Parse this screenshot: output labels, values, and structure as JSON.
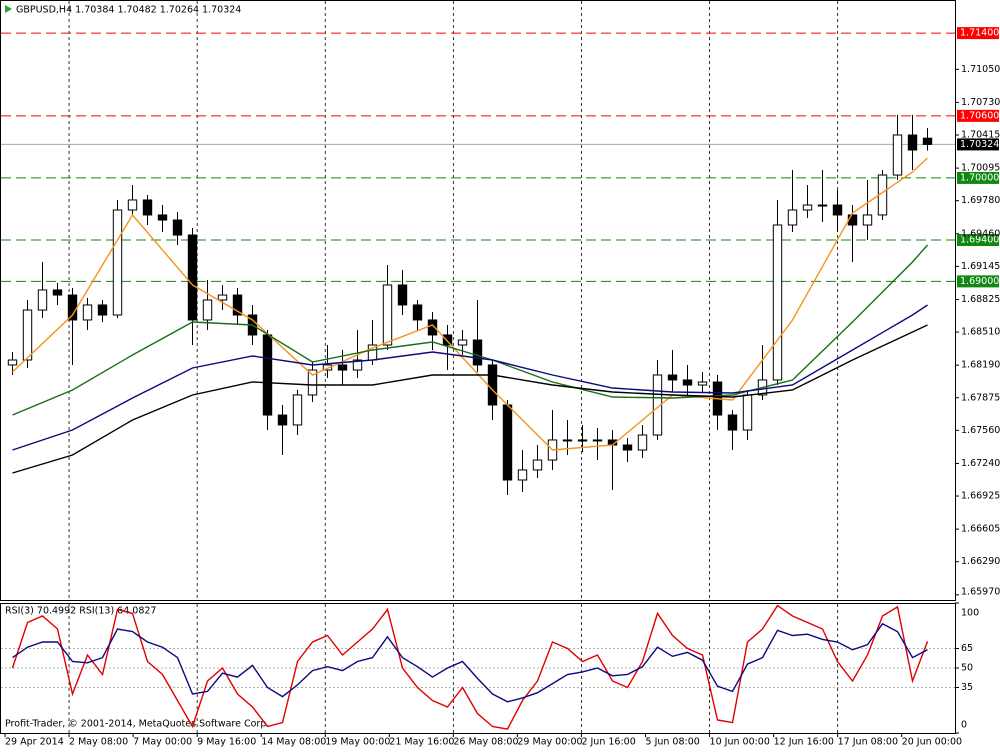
{
  "chart_data": [
    {
      "type": "candlestick",
      "title": "GBPUSD,H4  1.70384 1.70482 1.70264 1.70324",
      "open": [
        1.68192,
        1.6824,
        1.68723,
        1.68917,
        1.68868,
        1.68627,
        1.68772,
        1.68675,
        1.6969,
        1.69787,
        1.69642,
        1.69593,
        1.69448,
        1.68627,
        1.6882,
        1.68868,
        1.68675,
        1.68482,
        1.67708,
        1.67612,
        1.67902,
        1.68143,
        1.68192,
        1.68143,
        1.6824,
        1.68385,
        1.68965,
        1.68772,
        1.68627,
        1.68482,
        1.68385,
        1.68433,
        1.68192,
        1.67805,
        1.6708,
        1.67177,
        1.67273,
        1.67467,
        1.67467,
        1.67467,
        1.67467,
        1.67418,
        1.6737,
        1.67515,
        1.68095,
        1.68047,
        1.67998,
        1.68027,
        1.67708,
        1.67563,
        1.67902,
        1.68047,
        1.69545,
        1.6969,
        1.69738,
        1.69738,
        1.69642,
        1.69545,
        1.69642,
        1.70028,
        1.70415,
        1.70384
      ],
      "high": [
        1.68317,
        1.6882,
        1.69187,
        1.68984,
        1.68936,
        1.68839,
        1.6882,
        1.69787,
        1.69932,
        1.69835,
        1.69738,
        1.69671,
        1.69516,
        1.69013,
        1.68965,
        1.68936,
        1.68772,
        1.6853,
        1.67805,
        1.6795,
        1.68221,
        1.68385,
        1.68337,
        1.6853,
        1.68627,
        1.69158,
        1.6911,
        1.6882,
        1.68704,
        1.68578,
        1.6853,
        1.6882,
        1.6824,
        1.67853,
        1.6737,
        1.67418,
        1.67757,
        1.6766,
        1.67612,
        1.67583,
        1.67563,
        1.67486,
        1.67612,
        1.6824,
        1.68337,
        1.68192,
        1.68124,
        1.68095,
        1.67757,
        1.6795,
        1.68385,
        1.69787,
        1.70077,
        1.69932,
        1.70077,
        1.69883,
        1.69738,
        1.6998,
        1.70077,
        1.70608,
        1.70608,
        1.70482
      ],
      "low": [
        1.68095,
        1.68163,
        1.68646,
        1.68772,
        1.68192,
        1.6853,
        1.68607,
        1.68646,
        1.69642,
        1.69545,
        1.69477,
        1.69352,
        1.68385,
        1.6853,
        1.68723,
        1.68578,
        1.68385,
        1.67563,
        1.67322,
        1.67515,
        1.67834,
        1.68066,
        1.67998,
        1.68066,
        1.68192,
        1.68337,
        1.68675,
        1.6853,
        1.68337,
        1.68143,
        1.68288,
        1.68124,
        1.6766,
        1.66935,
        1.66964,
        1.67099,
        1.67177,
        1.67322,
        1.67351,
        1.67273,
        1.66983,
        1.67254,
        1.67293,
        1.67467,
        1.67931,
        1.67902,
        1.67931,
        1.67563,
        1.6737,
        1.67467,
        1.67853,
        1.67998,
        1.69477,
        1.69613,
        1.69574,
        1.69477,
        1.69187,
        1.694,
        1.69593,
        1.6998,
        1.70077,
        1.70264
      ],
      "close": [
        1.6824,
        1.68723,
        1.68917,
        1.68868,
        1.68627,
        1.68772,
        1.68675,
        1.6969,
        1.69787,
        1.69642,
        1.69593,
        1.69448,
        1.68627,
        1.6882,
        1.68868,
        1.68675,
        1.68482,
        1.67708,
        1.67612,
        1.67902,
        1.68143,
        1.68192,
        1.68143,
        1.6824,
        1.68385,
        1.68965,
        1.68772,
        1.68627,
        1.68482,
        1.68385,
        1.68433,
        1.68192,
        1.67805,
        1.6708,
        1.67177,
        1.67273,
        1.67467,
        1.67467,
        1.67467,
        1.67467,
        1.67418,
        1.6737,
        1.67515,
        1.68095,
        1.68047,
        1.67998,
        1.68027,
        1.67708,
        1.67563,
        1.67902,
        1.68047,
        1.69545,
        1.6969,
        1.69738,
        1.69738,
        1.69642,
        1.69545,
        1.69642,
        1.70028,
        1.70415,
        1.7027,
        1.70324
      ],
      "series": [
        {
          "color": "#f7931e",
          "x": [
            0,
            4,
            8,
            12,
            16,
            20,
            24,
            28,
            32,
            36,
            40,
            44,
            48,
            52,
            56,
            60,
            61
          ],
          "values": [
            1.68124,
            1.68675,
            1.69642,
            1.68965,
            1.68627,
            1.68095,
            1.68356,
            1.68578,
            1.6795,
            1.6737,
            1.67418,
            1.67902,
            1.67853,
            1.68627,
            1.69661,
            1.70057,
            1.70193
          ]
        },
        {
          "color": "#1a6e1a",
          "x": [
            0,
            4,
            8,
            12,
            16,
            20,
            24,
            28,
            32,
            36,
            40,
            44,
            48,
            52,
            56,
            60,
            61
          ],
          "values": [
            1.67708,
            1.6795,
            1.68288,
            1.68607,
            1.68578,
            1.68221,
            1.68337,
            1.68414,
            1.6824,
            1.68027,
            1.67882,
            1.67873,
            1.67902,
            1.68047,
            1.68607,
            1.69187,
            1.69352
          ]
        },
        {
          "color": "#0a0a80",
          "x": [
            0,
            4,
            8,
            12,
            16,
            20,
            24,
            28,
            32,
            36,
            40,
            44,
            48,
            52,
            56,
            60,
            61
          ],
          "values": [
            1.6737,
            1.67563,
            1.67873,
            1.68163,
            1.68279,
            1.68192,
            1.6824,
            1.68317,
            1.6824,
            1.68095,
            1.67969,
            1.67931,
            1.67921,
            1.67998,
            1.68337,
            1.68675,
            1.68772
          ]
        },
        {
          "color": "#000000",
          "x": [
            0,
            4,
            8,
            12,
            16,
            20,
            24,
            28,
            32,
            36,
            40,
            44,
            48,
            52,
            56,
            60,
            61
          ],
          "values": [
            1.67148,
            1.67322,
            1.6766,
            1.67902,
            1.68027,
            1.67998,
            1.67998,
            1.68095,
            1.68095,
            1.67998,
            1.67931,
            1.67902,
            1.67882,
            1.6795,
            1.6824,
            1.68511,
            1.68578
          ]
        }
      ],
      "levels": [
        {
          "value": 1.714,
          "label": "1.71400",
          "color": "#ff0000"
        },
        {
          "value": 1.706,
          "label": "1.70600",
          "color": "#ff0000"
        },
        {
          "value": 1.7,
          "label": "1.70000",
          "color": "#118811"
        },
        {
          "value": 1.694,
          "label": "1.69400",
          "color": "#118811"
        },
        {
          "value": 1.69,
          "label": "1.69000",
          "color": "#118811"
        }
      ],
      "last": {
        "value": 1.70324,
        "label": "1.70324"
      },
      "xlim": [
        0,
        62
      ],
      "xticks": [
        {
          "value": 0,
          "label": "29 Apr 2014"
        },
        {
          "value": 4.27,
          "label": "2 May 08:00"
        },
        {
          "value": 8.54,
          "label": "7 May 00:00"
        },
        {
          "value": 12.81,
          "label": "9 May 16:00"
        },
        {
          "value": 17.08,
          "label": "14 May 08:00"
        },
        {
          "value": 21.35,
          "label": "19 May 00:00"
        },
        {
          "value": 25.62,
          "label": "21 May 16:00"
        },
        {
          "value": 29.89,
          "label": "26 May 08:00"
        },
        {
          "value": 34.16,
          "label": "29 May 00:00"
        },
        {
          "value": 38.43,
          "label": "2 Jun 16:00"
        },
        {
          "value": 42.7,
          "label": "5 Jun 08:00"
        },
        {
          "value": 46.97,
          "label": "10 Jun 00:00"
        },
        {
          "value": 51.24,
          "label": "12 Jun 16:00"
        },
        {
          "value": 55.51,
          "label": "17 Jun 08:00"
        },
        {
          "value": 59.78,
          "label": "20 Jun 00:00"
        }
      ],
      "ylim": [
        1.6592,
        1.7172
      ],
      "yticks": [
        {
          "value": 1.7105,
          "label": "1.71050"
        },
        {
          "value": 1.7073,
          "label": "1.70730"
        },
        {
          "value": 1.70415,
          "label": "1.70415"
        },
        {
          "value": 1.70095,
          "label": "1.70095"
        },
        {
          "value": 1.6978,
          "label": "1.69780"
        },
        {
          "value": 1.6946,
          "label": "1.69460"
        },
        {
          "value": 1.69145,
          "label": "1.69145"
        },
        {
          "value": 1.68825,
          "label": "1.68825"
        },
        {
          "value": 1.6851,
          "label": "1.68510"
        },
        {
          "value": 1.6819,
          "label": "1.68190"
        },
        {
          "value": 1.67875,
          "label": "1.67875"
        },
        {
          "value": 1.6756,
          "label": "1.67560"
        },
        {
          "value": 1.6724,
          "label": "1.67240"
        },
        {
          "value": 1.66925,
          "label": "1.66925"
        },
        {
          "value": 1.66605,
          "label": "1.66605"
        },
        {
          "value": 1.6629,
          "label": "1.66290"
        },
        {
          "value": 1.6597,
          "label": "1.65970"
        }
      ]
    },
    {
      "type": "line",
      "title": "RSI(3) 70.4992  RSI(13) 64.0827",
      "annotation": "Profit-Trader, © 2001-2014, MetaQuotes Software Corp.",
      "series": [
        {
          "color": "#e00000",
          "values": [
            50,
            85,
            90,
            80,
            30,
            60,
            45,
            95,
            92,
            55,
            45,
            25,
            5,
            40,
            50,
            30,
            20,
            5,
            8,
            55,
            70,
            75,
            60,
            70,
            80,
            95,
            50,
            35,
            25,
            20,
            35,
            15,
            5,
            3,
            25,
            40,
            70,
            65,
            55,
            60,
            40,
            35,
            55,
            92,
            75,
            65,
            60,
            10,
            8,
            70,
            80,
            98,
            90,
            85,
            80,
            55,
            40,
            60,
            90,
            97,
            40,
            70.4992
          ]
        },
        {
          "color": "#0a0a80",
          "values": [
            58,
            66,
            70,
            70,
            55,
            54,
            58,
            80,
            78,
            70,
            66,
            58,
            30,
            32,
            46,
            43,
            52,
            35,
            28,
            37,
            48,
            51,
            48,
            55,
            58,
            74,
            58,
            51,
            43,
            50,
            55,
            42,
            30,
            24,
            27,
            31,
            38,
            45,
            47,
            50,
            44,
            45,
            51,
            66,
            59,
            62,
            56,
            36,
            32,
            53,
            58,
            79,
            75,
            76,
            72,
            70,
            64,
            68,
            84,
            78,
            58,
            64.0827
          ]
        }
      ],
      "xlim": [
        0,
        62
      ],
      "ylim": [
        0,
        100
      ],
      "yticks": [
        0,
        35,
        50,
        65,
        100
      ]
    }
  ]
}
